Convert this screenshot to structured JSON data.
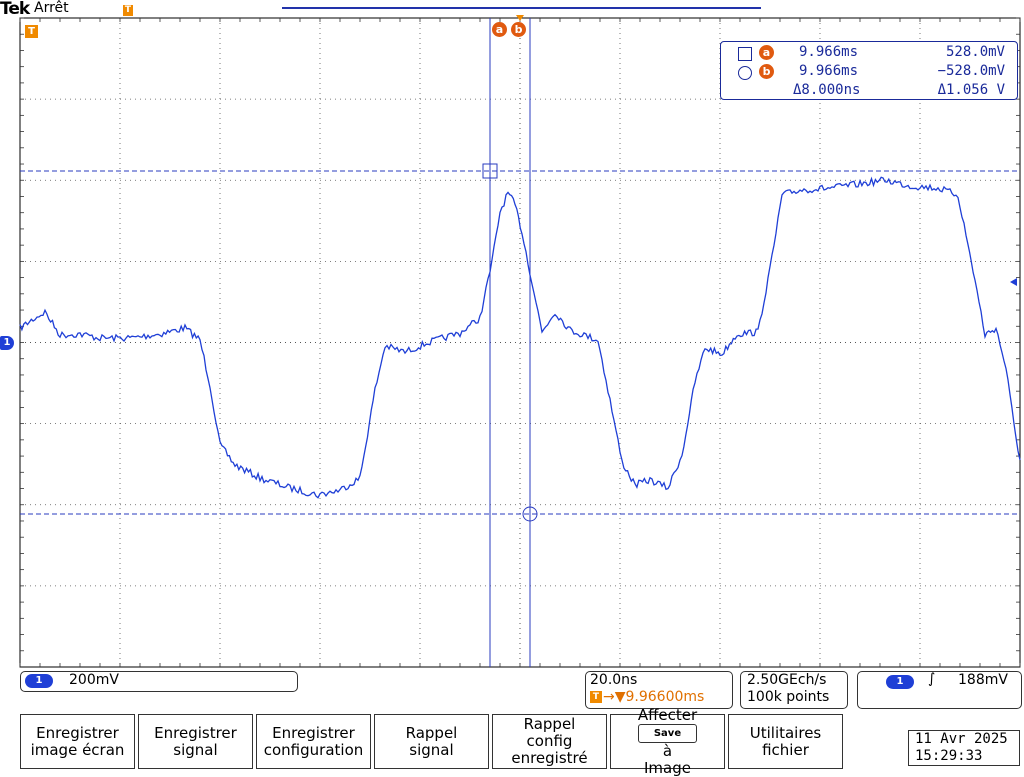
{
  "header": {
    "brand": "Tek",
    "status": "Arrêt",
    "trigger_marker": "T"
  },
  "screen": {
    "ch_tag": "1",
    "trigger_tag": "T",
    "cursor_a_tag": "a",
    "cursor_b_tag": "b",
    "colors": {
      "trace": "#1f3fd6",
      "cursor": "#2a3bbf",
      "grid": "#000000",
      "trigger": "#f08a00",
      "badge": "#e05a10"
    }
  },
  "readout": {
    "a": {
      "icon": "square-icon",
      "badge": "a",
      "time": "9.966ms",
      "value": "528.0mV"
    },
    "b": {
      "icon": "circle-icon",
      "badge": "b",
      "time": "9.966ms",
      "value": "−528.0mV"
    },
    "delta_time": "Δ8.000ns",
    "delta_value": "Δ1.056 V"
  },
  "bottom": {
    "ch1_label": "1",
    "ch1_scale": "200mV",
    "timebase": "20.0ns",
    "trigger_pos_tag": "T",
    "trigger_pos": "→▼9.96600ms",
    "sample_rate": "2.50GEch/s",
    "record_length": "100k points",
    "trig_ch_label": "1",
    "trig_slope": "∫",
    "trig_level": "188mV"
  },
  "buttons": [
    {
      "l1": "Enregistrer",
      "l2": "image écran"
    },
    {
      "l1": "Enregistrer",
      "l2": "signal"
    },
    {
      "l1": "Enregistrer",
      "l2": "configuration"
    },
    {
      "l1": "Rappel",
      "l2": "signal"
    },
    {
      "l1": "Rappel",
      "l2": "config",
      "l3": "enregistré"
    },
    {
      "l1": "Affecter",
      "badge": "Save",
      "l2": "à",
      "l3": "Image"
    },
    {
      "l1": "Utilitaires",
      "l2": "fichier"
    }
  ],
  "datetime": {
    "date": "11 Avr  2025",
    "time": "15:29:33"
  }
}
